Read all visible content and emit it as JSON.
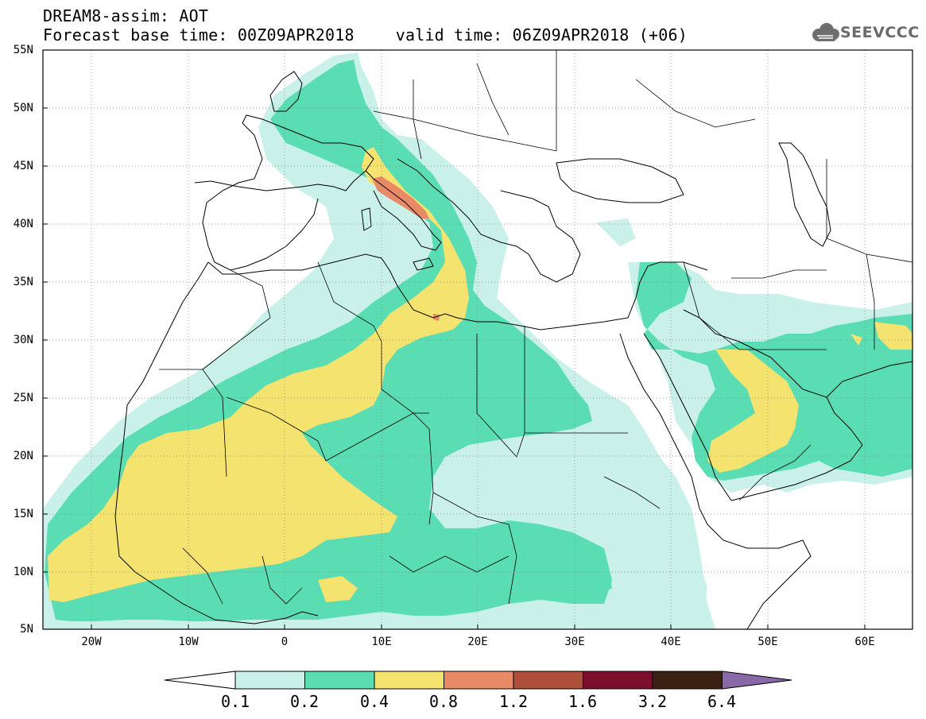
{
  "header": {
    "line1": "DREAM8-assim: AOT",
    "base_time": "Forecast base time: 00Z09APR2018",
    "valid_time": "valid time: 06Z09APR2018 (+06)"
  },
  "logo": {
    "text": "SEEVCCC",
    "icon": "cloud-icon"
  },
  "map": {
    "lat_labels": [
      "55N",
      "50N",
      "45N",
      "40N",
      "35N",
      "30N",
      "25N",
      "20N",
      "15N",
      "10N",
      "5N"
    ],
    "lon_labels": [
      "20W",
      "10W",
      "0",
      "10E",
      "20E",
      "30E",
      "40E",
      "50E",
      "60E"
    ],
    "extent": {
      "lon_min": -25,
      "lon_max": 65,
      "lat_min": 5,
      "lat_max": 55
    }
  },
  "colorbar": {
    "levels": [
      "0.1",
      "0.2",
      "0.4",
      "0.8",
      "1.2",
      "1.6",
      "3.2",
      "6.4"
    ],
    "colors": [
      "#c9f1ea",
      "#5bddb4",
      "#f5e36f",
      "#e98a66",
      "#b04e3c",
      "#7c0f2c",
      "#3b2113",
      "#8a69a8"
    ],
    "under_color": "#ffffff"
  }
}
